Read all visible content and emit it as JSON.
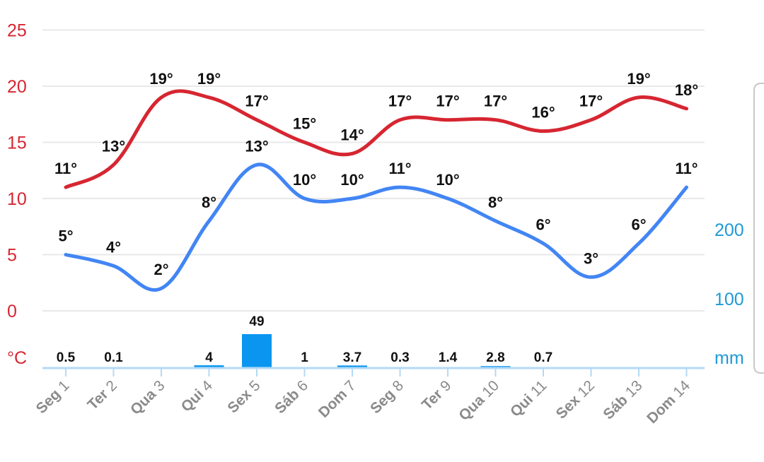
{
  "chart_data": {
    "type": "line",
    "categories": [
      "Seg 1",
      "Ter 2",
      "Qua 3",
      "Qui 4",
      "Sex 5",
      "Sáb 6",
      "Dom 7",
      "Seg 8",
      "Ter 9",
      "Qua 10",
      "Qui 11",
      "Sex 12",
      "Sáb 13",
      "Dom 14"
    ],
    "category_parts": [
      [
        "Seg",
        "1"
      ],
      [
        "Ter",
        "2"
      ],
      [
        "Qua",
        "3"
      ],
      [
        "Qui",
        "4"
      ],
      [
        "Sex",
        "5"
      ],
      [
        "Sáb",
        "6"
      ],
      [
        "Dom",
        "7"
      ],
      [
        "Seg",
        "8"
      ],
      [
        "Ter",
        "9"
      ],
      [
        "Qua",
        "10"
      ],
      [
        "Qui",
        "11"
      ],
      [
        "Sex",
        "12"
      ],
      [
        "Sáb",
        "13"
      ],
      [
        "Dom",
        "14"
      ]
    ],
    "series": [
      {
        "type": "line",
        "axis": "left",
        "color": "#d62631",
        "values": [
          11,
          13,
          19,
          19,
          17,
          15,
          14,
          17,
          17,
          17,
          16,
          17,
          19,
          18
        ],
        "labels": [
          "11°",
          "13°",
          "19°",
          "19°",
          "17°",
          "15°",
          "14°",
          "17°",
          "17°",
          "17°",
          "16°",
          "17°",
          "19°",
          "18°"
        ]
      },
      {
        "type": "line",
        "axis": "left",
        "color": "#4285f4",
        "values": [
          5,
          4,
          2,
          8,
          13,
          10,
          10,
          11,
          10,
          8,
          6,
          3,
          6,
          11
        ],
        "labels": [
          "5°",
          "4°",
          "2°",
          "8°",
          "13°",
          "10°",
          "10°",
          "11°",
          "10°",
          "8°",
          "6°",
          "3°",
          "6°",
          "11°"
        ]
      },
      {
        "type": "bar",
        "axis": "right",
        "color": "#0a96f0",
        "values": [
          0.5,
          0.1,
          0,
          4,
          49,
          1,
          3.7,
          0.3,
          1.4,
          2.8,
          0.7,
          0,
          0,
          0
        ],
        "labels": [
          "0.5",
          "0.1",
          "",
          "4",
          "49",
          "1",
          "3.7",
          "0.3",
          "1.4",
          "2.8",
          "0.7",
          "",
          "",
          ""
        ]
      }
    ],
    "y_left": {
      "ticks": [
        0,
        5,
        10,
        15,
        20,
        25
      ],
      "tick_labels": [
        "0",
        "5",
        "10",
        "15",
        "20",
        "25"
      ],
      "unit": "°C",
      "color": "#d62631"
    },
    "y_right": {
      "ticks": [
        100,
        200
      ],
      "tick_labels": [
        "100",
        "200"
      ],
      "unit": "mm",
      "color": "#1e9ad6"
    },
    "grid": true,
    "axis_color": "#b3d9f7"
  }
}
